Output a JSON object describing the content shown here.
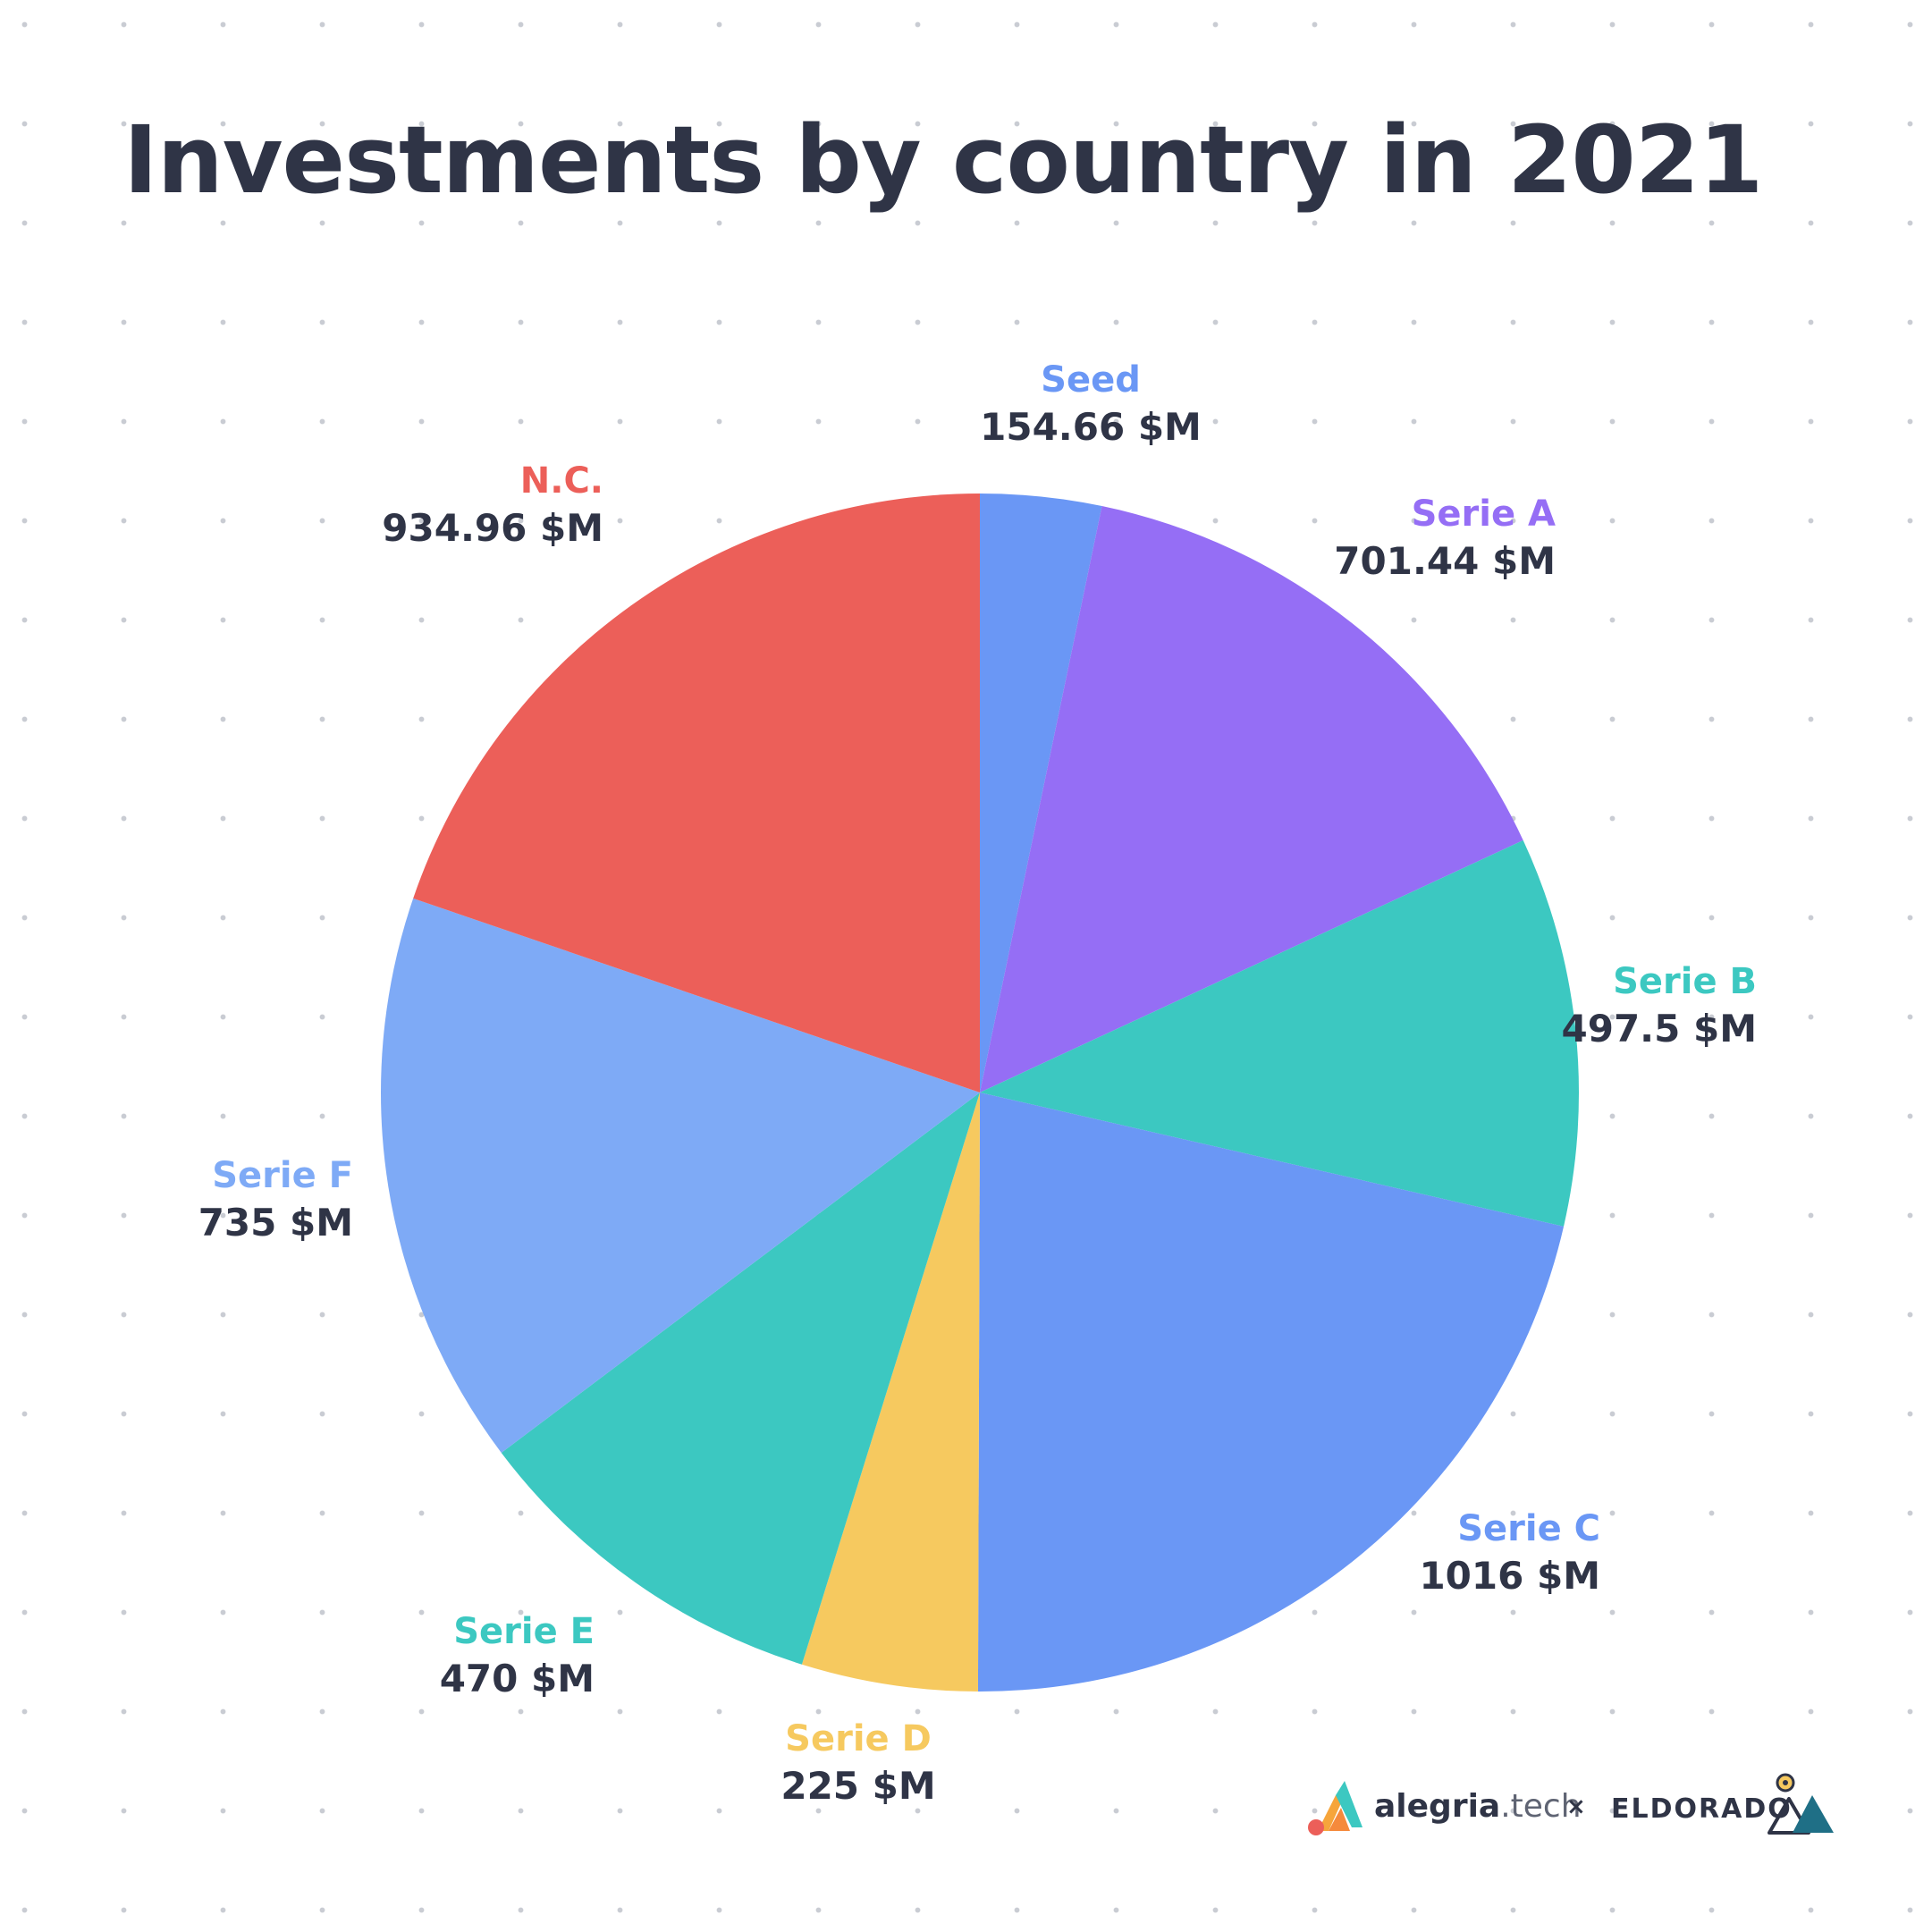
{
  "title": "Investments by country in 2021",
  "chart_data": {
    "type": "pie",
    "title": "Investments by country in 2021",
    "unit": "$M",
    "start_angle_deg": 0,
    "direction": "clockwise",
    "slices": [
      {
        "name": "Seed",
        "value": 154.66,
        "label": "154.66 $M",
        "color": "#6a97f5",
        "label_color": "#6a97f5"
      },
      {
        "name": "Serie A",
        "value": 701.44,
        "label": "701.44 $M",
        "color": "#956ef5",
        "label_color": "#956ef5"
      },
      {
        "name": "Serie B",
        "value": 497.5,
        "label": "497.5 $M",
        "color": "#3cc8c1",
        "label_color": "#3cc8c1"
      },
      {
        "name": "Serie C",
        "value": 1016,
        "label": "1016 $M",
        "color": "#6a97f5",
        "label_color": "#6a97f5"
      },
      {
        "name": "Serie D",
        "value": 225,
        "label": "225 $M",
        "color": "#f6c95f",
        "label_color": "#f6c95f"
      },
      {
        "name": "Serie E",
        "value": 470,
        "label": "470 $M",
        "color": "#3cc8c1",
        "label_color": "#3cc8c1"
      },
      {
        "name": "Serie F",
        "value": 735,
        "label": "735 $M",
        "color": "#7eaaf6",
        "label_color": "#7eaaf6"
      },
      {
        "name": "N.C.",
        "value": 934.96,
        "label": "934.96 $M",
        "color": "#ec5f59",
        "label_color": "#ec5f59"
      }
    ]
  },
  "logos": {
    "alegria_bold": "alegria",
    "alegria_light": ".tech",
    "separator": "×",
    "eldorado": "ELDORADO"
  }
}
